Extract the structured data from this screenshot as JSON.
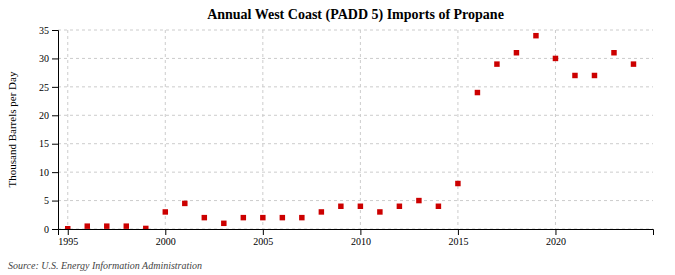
{
  "chart_data": {
    "type": "scatter",
    "title": "Annual West Coast (PADD 5) Imports of Propane",
    "ylabel": "Thousand Barrels per Day",
    "annotations": [
      "Source: U.S. Energy Information Administration"
    ],
    "x": [
      1995,
      1996,
      1997,
      1998,
      1999,
      2000,
      2001,
      2002,
      2003,
      2004,
      2005,
      2006,
      2007,
      2008,
      2009,
      2010,
      2011,
      2012,
      2013,
      2014,
      2015,
      2016,
      2017,
      2018,
      2019,
      2020,
      2021,
      2022,
      2023,
      2024
    ],
    "values": [
      0.05,
      0.5,
      0.5,
      0.5,
      0.1,
      3.0,
      4.5,
      2.0,
      1.0,
      2.0,
      2.0,
      2.0,
      2.0,
      3.0,
      4.0,
      4.0,
      3.0,
      4.0,
      5.0,
      4.0,
      8.0,
      24.0,
      29.0,
      31.0,
      34.0,
      30.0,
      27.0,
      27.0,
      31.0,
      29.0
    ],
    "color": "#cc0000",
    "marker": "square",
    "xlim": [
      1994.5,
      2025
    ],
    "ylim": [
      0,
      35
    ],
    "xticks": [
      1995,
      2000,
      2005,
      2010,
      2015,
      2020
    ],
    "yticks": [
      0,
      5,
      10,
      15,
      20,
      25,
      30,
      35
    ],
    "grid": true
  }
}
